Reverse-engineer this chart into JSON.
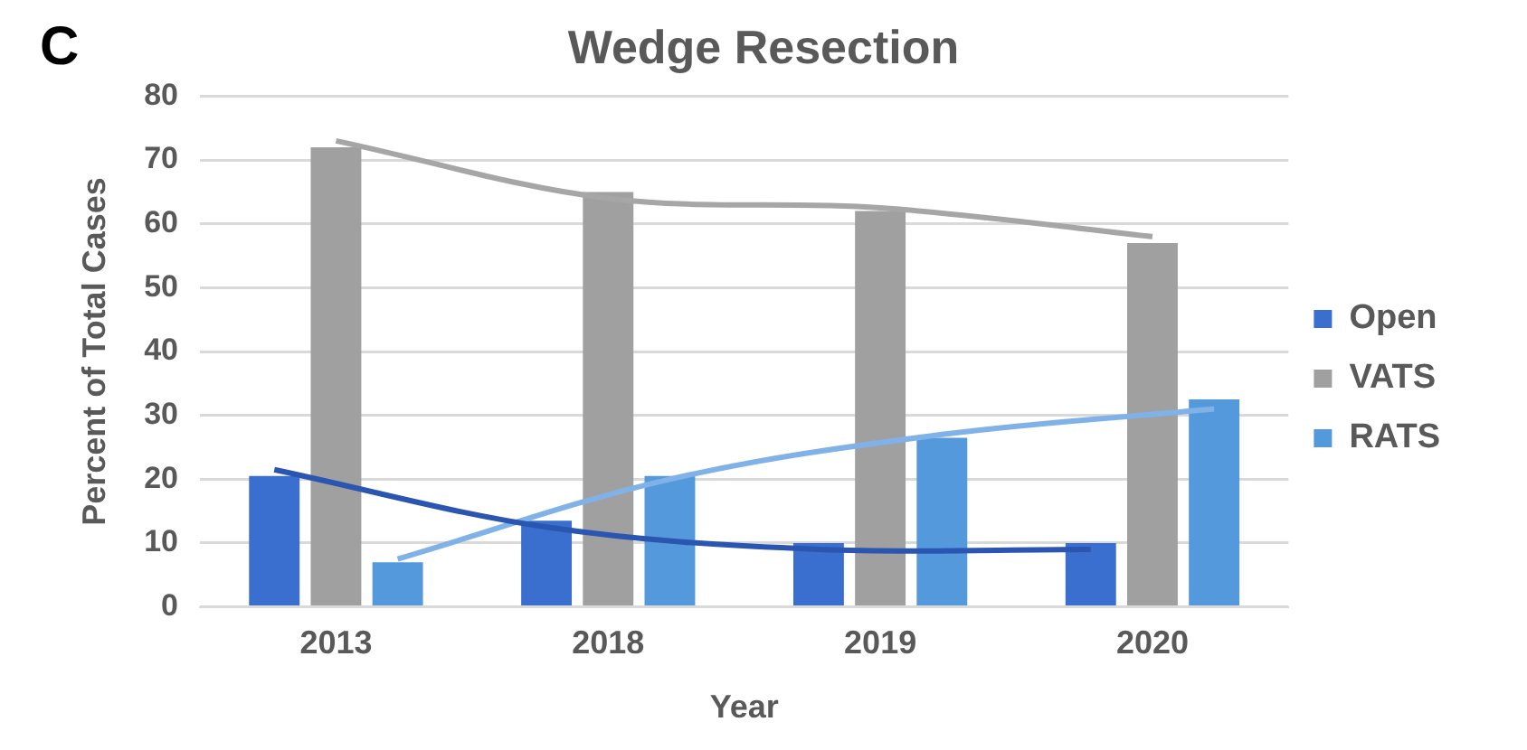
{
  "chart_data": {
    "type": "bar",
    "title": "Wedge Resection",
    "xlabel": "Year",
    "ylabel": "Percent of Total Cases",
    "annotations": [
      "C"
    ],
    "categories": [
      "2013",
      "2018",
      "2019",
      "2020"
    ],
    "series": [
      {
        "name": "Open",
        "color": "#3a6fcf",
        "values": [
          20.5,
          13.5,
          10,
          10
        ]
      },
      {
        "name": "VATS",
        "color": "#a0a0a0",
        "values": [
          72,
          65,
          62,
          57
        ]
      },
      {
        "name": "RATS",
        "color": "#5599dd",
        "values": [
          7,
          20.5,
          26.5,
          32.5
        ]
      },
      {
        "type": "line",
        "color": "#2a55b0",
        "values": [
          21.5,
          12.5,
          9,
          9
        ]
      },
      {
        "type": "line",
        "color": "#a6a6a6",
        "values": [
          73,
          64,
          62.5,
          58
        ]
      },
      {
        "type": "line",
        "color": "#80b2e8",
        "values": [
          7.5,
          20,
          27,
          31
        ]
      }
    ],
    "ylim": [
      0,
      80
    ],
    "yticks": [
      0,
      10,
      20,
      30,
      40,
      50,
      60,
      70,
      80
    ],
    "grid": "y",
    "legend": "right",
    "marker": "none"
  }
}
